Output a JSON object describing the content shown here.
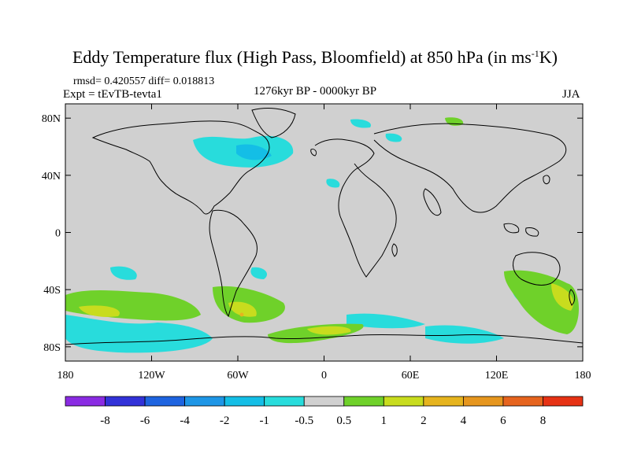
{
  "title": {
    "main": "Eddy Temperature flux (High Pass, Bloomfield) at 850 hPa (in ms",
    "sup": "-1",
    "tail": "K)"
  },
  "stats": "rmsd= 0.420557 diff= 0.018813",
  "experiment": "Expt = tEvTB-tevta1",
  "period": "1276kyr BP - 0000kyr BP",
  "season": "JJA",
  "map": {
    "projection": "cylindrical-equidistant",
    "lon_range": [
      -180,
      180
    ],
    "lat_range": [
      -90,
      90
    ],
    "background_color": "#d0d0d0",
    "coastline_color": "#000000",
    "y_ticks": [
      {
        "lat": 80,
        "label": "80N"
      },
      {
        "lat": 40,
        "label": "40N"
      },
      {
        "lat": 0,
        "label": "0"
      },
      {
        "lat": -40,
        "label": "40S"
      },
      {
        "lat": -80,
        "label": "80S"
      }
    ],
    "x_ticks": [
      {
        "lon": -180,
        "label": "180"
      },
      {
        "lon": -120,
        "label": "120W"
      },
      {
        "lon": -60,
        "label": "60W"
      },
      {
        "lon": 0,
        "label": "0"
      },
      {
        "lon": 60,
        "label": "60E"
      },
      {
        "lon": 120,
        "label": "120E"
      },
      {
        "lon": 180,
        "label": "180"
      }
    ]
  },
  "colorbar": {
    "colors": [
      "#8a2be2",
      "#3232d8",
      "#1e64e0",
      "#1e96e6",
      "#14bee6",
      "#28dcdc",
      "#d0d0d0",
      "#6fd12a",
      "#c8dc1e",
      "#e6b41e",
      "#e6961e",
      "#e6641e",
      "#e63214"
    ],
    "labels": [
      "-8",
      "-6",
      "-4",
      "-2",
      "-1",
      "-0.5",
      "0.5",
      "1",
      "2",
      "4",
      "6",
      "8"
    ]
  }
}
